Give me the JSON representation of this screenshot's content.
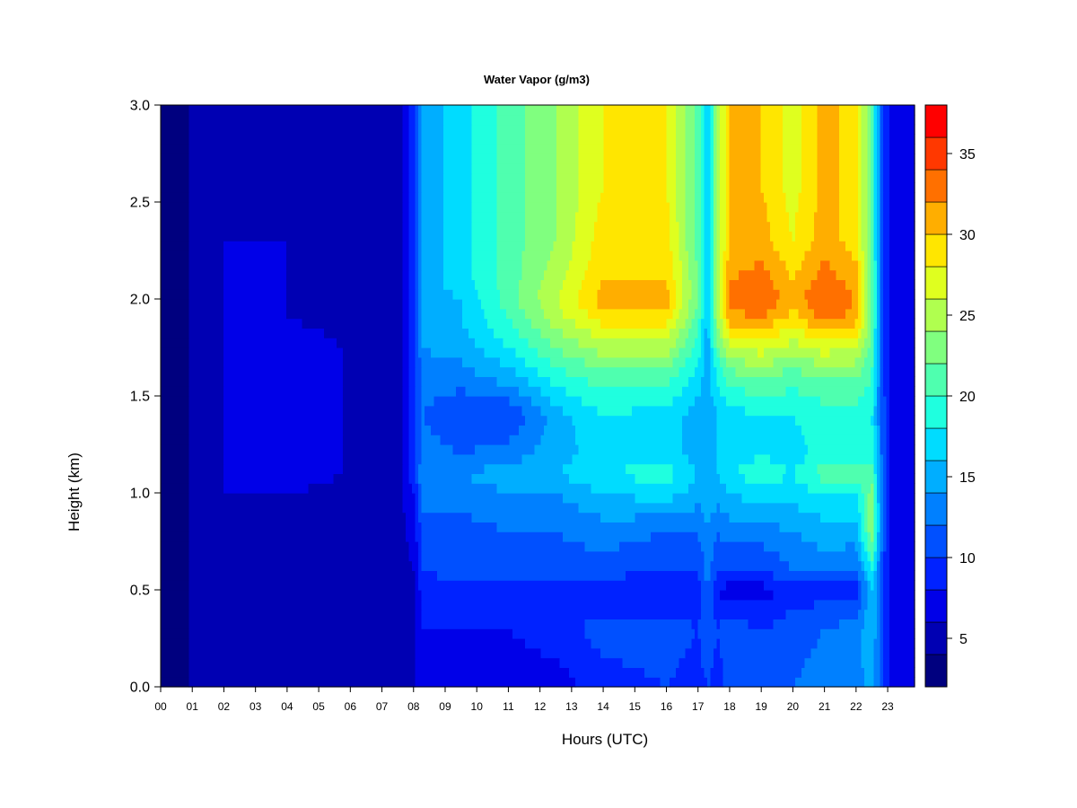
{
  "chart_data": {
    "type": "heatmap",
    "title": "Water Vapor (g/m3)",
    "xlabel": "Hours (UTC)",
    "ylabel": "Height (km)",
    "xlim": [
      0,
      23.85
    ],
    "ylim": [
      0,
      3.0
    ],
    "x_ticks": [
      "00",
      "01",
      "02",
      "03",
      "04",
      "05",
      "06",
      "07",
      "08",
      "09",
      "10",
      "11",
      "12",
      "13",
      "14",
      "15",
      "16",
      "17",
      "18",
      "19",
      "20",
      "21",
      "22",
      "23"
    ],
    "y_ticks": [
      "0.0",
      "0.5",
      "1.0",
      "1.5",
      "2.0",
      "2.5",
      "3.0"
    ],
    "colorbar": {
      "range": [
        2,
        38
      ],
      "levels": [
        2,
        4,
        6,
        8,
        10,
        12,
        14,
        16,
        18,
        20,
        22,
        24,
        26,
        28,
        30,
        32,
        34,
        36,
        38
      ],
      "colors": [
        "#00007f",
        "#0000b3",
        "#0000e8",
        "#0022ff",
        "#0050ff",
        "#0080ff",
        "#00aeff",
        "#00dcff",
        "#1fffdf",
        "#4fffaf",
        "#80ff7f",
        "#b0ff4f",
        "#dfff1f",
        "#ffe600",
        "#ffae00",
        "#ff7000",
        "#ff3800",
        "#ff0000",
        "#c40000",
        "#800000"
      ],
      "tick_values": [
        5,
        10,
        15,
        20,
        25,
        30,
        35
      ],
      "tick_labels": [
        "5",
        "10",
        "15",
        "20",
        "25",
        "30",
        "35"
      ]
    },
    "height_profile_km": [
      0.0,
      0.3,
      0.5,
      0.6,
      0.8,
      1.0,
      1.1,
      1.2,
      1.4,
      1.6,
      1.75,
      1.9,
      2.0,
      2.1,
      2.3,
      2.6,
      3.0
    ],
    "hourly_profiles_gm3": [
      {
        "hour": 0.0,
        "values": [
          3,
          3,
          3,
          3,
          3,
          3,
          3,
          3,
          3,
          3,
          3,
          3,
          3,
          3,
          3,
          3,
          3
        ]
      },
      {
        "hour": 0.9,
        "values": [
          4,
          4,
          4,
          4,
          4,
          4,
          4,
          4,
          4,
          4,
          4,
          4,
          4,
          4,
          4,
          4,
          4
        ]
      },
      {
        "hour": 1.1,
        "values": [
          5,
          5,
          5,
          5,
          5,
          5,
          5,
          5,
          5,
          5,
          5,
          5,
          5,
          5,
          5,
          5,
          5
        ]
      },
      {
        "hour": 2.0,
        "values": [
          6,
          6,
          4,
          5,
          5,
          6,
          6,
          6,
          6,
          6,
          6,
          6,
          6,
          6,
          6,
          6,
          5
        ]
      },
      {
        "hour": 4.0,
        "values": [
          5,
          5,
          5,
          5,
          6,
          6,
          7,
          7,
          7,
          7,
          7,
          6,
          6,
          6,
          6,
          5,
          5
        ]
      },
      {
        "hour": 7.5,
        "values": [
          5,
          5,
          5,
          5,
          5,
          5,
          5,
          5,
          5,
          5,
          5,
          5,
          5,
          5,
          5,
          5,
          5
        ]
      },
      {
        "hour": 8.0,
        "values": [
          6,
          6,
          6,
          6,
          7,
          8,
          9,
          9,
          9,
          9,
          9,
          9,
          9,
          9,
          9,
          9,
          9
        ]
      },
      {
        "hour": 8.3,
        "values": [
          7,
          8,
          9,
          10,
          11,
          13,
          14,
          13,
          12,
          13,
          14,
          15,
          15,
          15,
          15,
          15,
          15
        ]
      },
      {
        "hour": 9.5,
        "values": [
          7,
          8,
          9,
          11,
          11,
          13,
          14,
          12,
          10,
          13,
          15,
          16,
          16,
          17,
          17,
          17,
          17
        ]
      },
      {
        "hour": 11.0,
        "values": [
          7,
          8,
          9,
          11,
          12,
          14,
          15,
          13,
          10,
          15,
          18,
          20,
          21,
          21,
          21,
          21,
          21
        ]
      },
      {
        "hour": 12.5,
        "values": [
          7,
          9,
          8,
          11,
          12,
          14,
          16,
          15,
          15,
          19,
          22,
          25,
          26,
          25,
          24,
          24,
          24
        ]
      },
      {
        "hour": 14.0,
        "values": [
          9,
          11,
          8,
          11,
          13,
          16,
          18,
          17,
          18,
          21,
          25,
          29,
          31,
          30,
          29,
          28,
          28
        ]
      },
      {
        "hour": 16.0,
        "values": [
          10,
          11,
          8,
          10,
          12,
          17,
          19,
          17,
          17,
          21,
          25,
          29,
          31,
          30,
          29,
          28,
          28
        ]
      },
      {
        "hour": 17.0,
        "values": [
          9,
          10,
          9,
          10,
          12,
          15,
          16,
          15,
          15,
          17,
          19,
          21,
          22,
          22,
          21,
          21,
          21
        ]
      },
      {
        "hour": 17.3,
        "values": [
          10,
          12,
          12,
          13,
          14,
          15,
          15,
          15,
          15,
          15,
          15,
          15,
          15,
          15,
          15,
          15,
          15
        ]
      },
      {
        "hour": 17.6,
        "values": [
          9,
          10,
          8,
          10,
          12,
          15,
          16,
          16,
          16,
          18,
          21,
          24,
          25,
          25,
          24,
          24,
          24
        ]
      },
      {
        "hour": 18.0,
        "values": [
          11,
          11,
          7,
          10,
          13,
          16,
          18,
          17,
          17,
          21,
          26,
          31,
          33,
          32,
          30,
          30,
          30
        ]
      },
      {
        "hour": 19.0,
        "values": [
          11,
          10,
          7,
          10,
          13,
          17,
          19,
          18,
          18,
          22,
          27,
          32,
          34,
          33,
          31,
          30,
          30
        ]
      },
      {
        "hour": 20.0,
        "values": [
          12,
          11,
          9,
          12,
          14,
          17,
          18,
          17,
          18,
          21,
          25,
          29,
          31,
          30,
          28,
          27,
          27
        ]
      },
      {
        "hour": 21.0,
        "values": [
          13,
          12,
          9,
          13,
          15,
          18,
          21,
          19,
          19,
          22,
          27,
          33,
          34,
          33,
          31,
          31,
          31
        ]
      },
      {
        "hour": 22.0,
        "values": [
          13,
          13,
          9,
          12,
          15,
          18,
          21,
          19,
          19,
          22,
          26,
          31,
          32,
          31,
          29,
          29,
          29
        ]
      },
      {
        "hour": 22.5,
        "values": [
          15,
          16,
          16,
          18,
          24,
          23,
          21,
          19,
          18,
          20,
          21,
          22,
          22,
          22,
          21,
          21,
          21
        ]
      },
      {
        "hour": 22.85,
        "values": [
          10,
          10,
          10,
          10,
          11,
          11,
          11,
          11,
          11,
          10,
          10,
          10,
          10,
          10,
          10,
          10,
          10
        ]
      },
      {
        "hour": 23.1,
        "values": [
          8,
          8,
          8,
          8,
          8,
          8,
          8,
          8,
          8,
          8,
          8,
          8,
          8,
          8,
          8,
          8,
          8
        ]
      },
      {
        "hour": 23.85,
        "values": [
          7,
          7,
          7,
          7,
          7,
          7,
          7,
          7,
          7,
          7,
          7,
          7,
          7,
          7,
          7,
          7,
          7
        ]
      }
    ]
  }
}
